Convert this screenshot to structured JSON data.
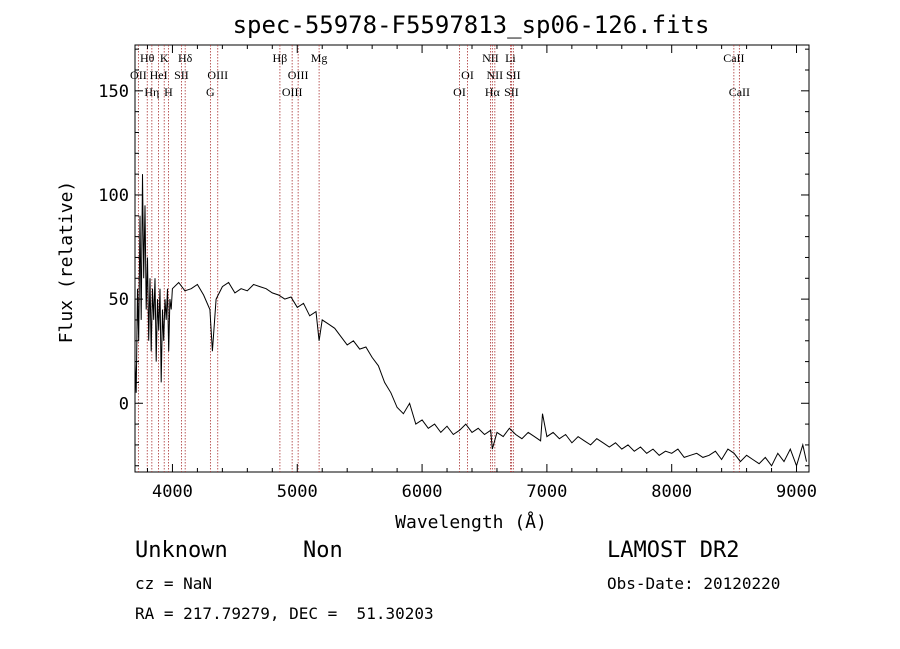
{
  "chart_data": {
    "type": "line",
    "title": "spec-55978-F5597813_sp06-126.fits",
    "xlabel": "Wavelength (Å)",
    "ylabel": "Flux (relative)",
    "xlim": [
      3700,
      9100
    ],
    "ylim": [
      -33,
      172
    ],
    "x_ticks": [
      4000,
      5000,
      6000,
      7000,
      8000,
      9000
    ],
    "y_ticks": [
      0,
      50,
      100,
      150
    ],
    "grid": false,
    "series": [
      {
        "x": [
          3700,
          3710,
          3720,
          3730,
          3740,
          3750,
          3760,
          3770,
          3780,
          3790,
          3800,
          3810,
          3820,
          3830,
          3840,
          3850,
          3860,
          3870,
          3880,
          3890,
          3900,
          3910,
          3920,
          3930,
          3940,
          3950,
          3960,
          3970,
          3980,
          3990,
          4000,
          4050,
          4100,
          4150,
          4200,
          4250,
          4300,
          4320,
          4350,
          4400,
          4450,
          4500,
          4550,
          4600,
          4650,
          4700,
          4750,
          4800,
          4850,
          4900,
          4950,
          5000,
          5050,
          5100,
          5150,
          5175,
          5200,
          5250,
          5300,
          5350,
          5400,
          5450,
          5500,
          5550,
          5600,
          5650,
          5700,
          5750,
          5800,
          5850,
          5900,
          5950,
          6000,
          6050,
          6100,
          6150,
          6200,
          6250,
          6300,
          6350,
          6400,
          6450,
          6500,
          6550,
          6563,
          6600,
          6650,
          6700,
          6750,
          6800,
          6850,
          6900,
          6950,
          6965,
          7000,
          7050,
          7100,
          7150,
          7200,
          7250,
          7300,
          7350,
          7400,
          7450,
          7500,
          7550,
          7600,
          7650,
          7700,
          7750,
          7800,
          7850,
          7900,
          7950,
          8000,
          8050,
          8100,
          8150,
          8200,
          8250,
          8300,
          8350,
          8400,
          8450,
          8500,
          8550,
          8600,
          8650,
          8700,
          8750,
          8800,
          8850,
          8900,
          8950,
          9000,
          9050,
          9080
        ],
        "values": [
          20,
          5,
          55,
          30,
          90,
          40,
          110,
          60,
          95,
          45,
          70,
          30,
          60,
          25,
          55,
          40,
          60,
          20,
          50,
          35,
          55,
          10,
          45,
          30,
          50,
          40,
          55,
          25,
          50,
          45,
          55,
          58,
          54,
          55,
          57,
          52,
          45,
          25,
          50,
          56,
          58,
          53,
          55,
          54,
          57,
          56,
          55,
          53,
          52,
          50,
          51,
          46,
          48,
          42,
          44,
          30,
          40,
          38,
          36,
          32,
          28,
          30,
          26,
          27,
          22,
          18,
          10,
          5,
          -2,
          -5,
          0,
          -10,
          -8,
          -12,
          -10,
          -14,
          -11,
          -15,
          -13,
          -10,
          -14,
          -12,
          -15,
          -13,
          -22,
          -14,
          -16,
          -12,
          -15,
          -17,
          -14,
          -16,
          -18,
          -5,
          -16,
          -14,
          -17,
          -15,
          -19,
          -16,
          -18,
          -20,
          -17,
          -19,
          -21,
          -19,
          -22,
          -20,
          -23,
          -21,
          -24,
          -22,
          -25,
          -23,
          -24,
          -22,
          -26,
          -25,
          -24,
          -26,
          -25,
          -23,
          -27,
          -22,
          -24,
          -28,
          -25,
          -27,
          -29,
          -26,
          -30,
          -24,
          -28,
          -22,
          -30,
          -20,
          -28
        ]
      }
    ],
    "lines": [
      {
        "label": "Hθ",
        "x": 3798,
        "row": 1
      },
      {
        "label": "OII",
        "x": 3727,
        "row": 2
      },
      {
        "label": "Hη",
        "x": 3835,
        "row": 3
      },
      {
        "label": "K",
        "x": 3934,
        "row": 1
      },
      {
        "label": "HeI",
        "x": 3889,
        "row": 2
      },
      {
        "label": "H",
        "x": 3968,
        "row": 3
      },
      {
        "label": "Hδ",
        "x": 4102,
        "row": 1
      },
      {
        "label": "SII",
        "x": 4072,
        "row": 2
      },
      {
        "label": "OIII",
        "x": 4363,
        "row": 2
      },
      {
        "label": "G",
        "x": 4304,
        "row": 3
      },
      {
        "label": "Hβ",
        "x": 4861,
        "row": 1
      },
      {
        "label": "OIII",
        "x": 5007,
        "row": 2
      },
      {
        "label": "OIII",
        "x": 4959,
        "row": 3
      },
      {
        "label": "Mg",
        "x": 5175,
        "row": 1
      },
      {
        "label": "OI",
        "x": 6364,
        "row": 2
      },
      {
        "label": "OI",
        "x": 6300,
        "row": 3
      },
      {
        "label": "NII",
        "x": 6548,
        "row": 1
      },
      {
        "label": "NII",
        "x": 6583,
        "row": 2
      },
      {
        "label": "Hα",
        "x": 6563,
        "row": 3
      },
      {
        "label": "Li",
        "x": 6708,
        "row": 1
      },
      {
        "label": "SII",
        "x": 6731,
        "row": 2
      },
      {
        "label": "SII",
        "x": 6716,
        "row": 3
      },
      {
        "label": "CaII",
        "x": 8498,
        "row": 1
      },
      {
        "label": "CaII",
        "x": 8542,
        "row": 3
      }
    ]
  },
  "info": {
    "class": "Unknown",
    "subclass": "Non",
    "survey": "LAMOST DR2",
    "cz": "cz = NaN",
    "obs_date": "Obs-Date: 20120220",
    "coords": "RA = 217.79279, DEC =  51.30203"
  }
}
